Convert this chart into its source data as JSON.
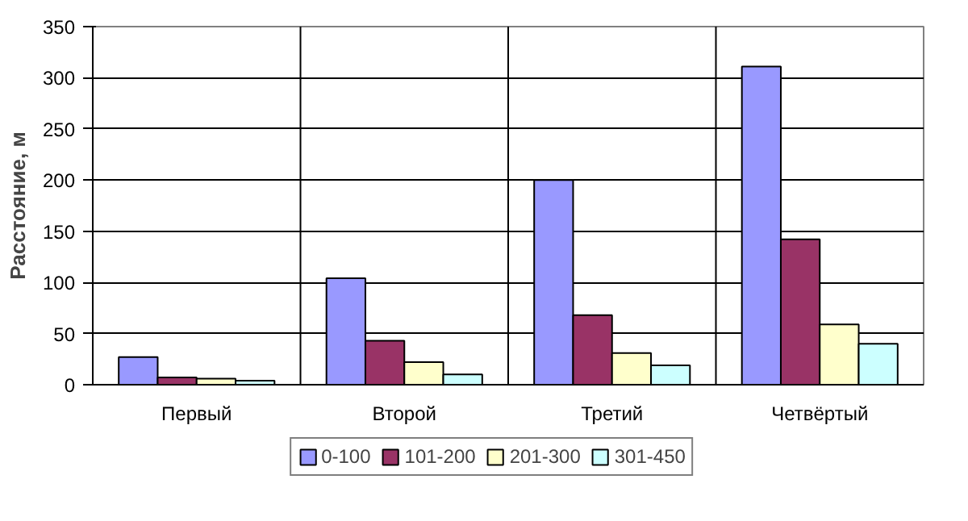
{
  "chart_data": {
    "type": "bar",
    "ylabel": "Расстояние, м",
    "categories": [
      "Первый",
      "Второй",
      "Третий",
      "Четвёртый"
    ],
    "series": [
      {
        "name": "0-100",
        "color": "#9999ff",
        "values": [
          27,
          104,
          200,
          311
        ]
      },
      {
        "name": "101-200",
        "color": "#993366",
        "values": [
          7,
          43,
          68,
          142
        ]
      },
      {
        "name": "201-300",
        "color": "#ffffcc",
        "values": [
          6,
          22,
          31,
          59
        ]
      },
      {
        "name": "301-450",
        "color": "#ccffff",
        "values": [
          4,
          10,
          19,
          40
        ]
      }
    ],
    "ylim": [
      0,
      350
    ],
    "yticks": [
      0,
      50,
      100,
      150,
      200,
      250,
      300,
      350
    ],
    "grid": true,
    "legend": "bottom"
  }
}
